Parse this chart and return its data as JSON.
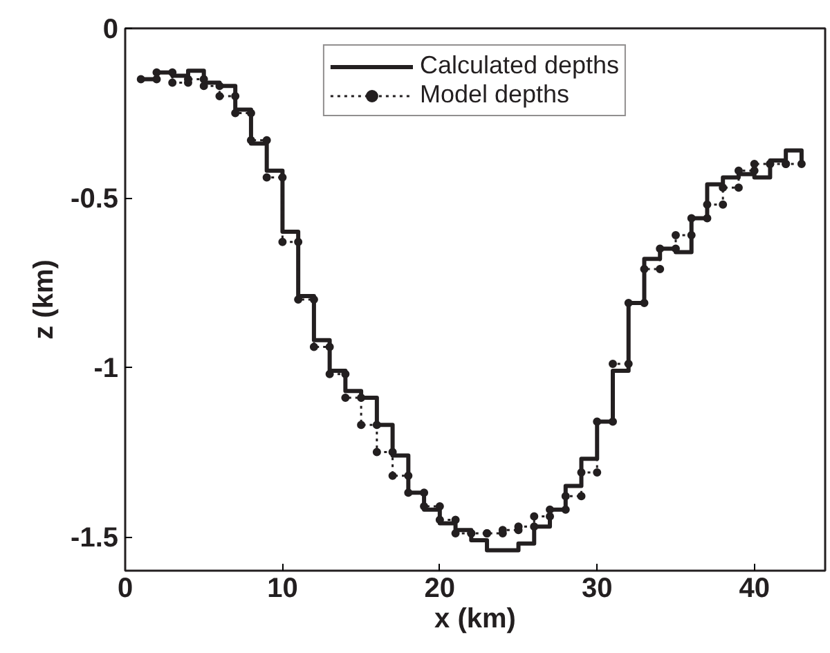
{
  "chart_data": {
    "type": "step",
    "xlabel": "x (km)",
    "ylabel": "z (km)",
    "x": [
      1,
      2,
      3,
      4,
      5,
      6,
      7,
      8,
      9,
      10,
      11,
      12,
      13,
      14,
      15,
      16,
      17,
      18,
      19,
      20,
      21,
      22,
      23,
      24,
      25,
      26,
      27,
      28,
      29,
      30,
      31,
      32,
      33,
      34,
      35,
      36,
      37,
      38,
      39,
      40,
      41,
      42,
      43
    ],
    "series": [
      {
        "name": "Calculated depths",
        "color": "#231f20",
        "line_style": "solid",
        "marker": "none",
        "values": [
          -0.15,
          -0.13,
          -0.14,
          -0.125,
          -0.16,
          -0.17,
          -0.24,
          -0.34,
          -0.42,
          -0.6,
          -0.79,
          -0.92,
          -1.01,
          -1.07,
          -1.09,
          -1.17,
          -1.26,
          -1.37,
          -1.42,
          -1.46,
          -1.48,
          -1.51,
          -1.54,
          -1.54,
          -1.52,
          -1.47,
          -1.42,
          -1.35,
          -1.27,
          -1.16,
          -1.01,
          -0.81,
          -0.68,
          -0.65,
          -0.66,
          -0.56,
          -0.46,
          -0.44,
          -0.43,
          -0.44,
          -0.39,
          -0.36,
          -0.41
        ]
      },
      {
        "name": "Model depths",
        "type": "line",
        "color": "#231f20",
        "line_style": "dotted",
        "marker": "circle",
        "x": [
          1,
          2,
          2,
          3,
          3,
          4,
          4,
          5,
          5,
          6,
          6,
          7,
          7,
          8,
          8,
          9,
          9,
          10,
          10,
          11,
          11,
          12,
          12,
          13,
          13,
          14,
          14,
          15,
          15,
          16,
          16,
          17,
          17,
          18,
          18,
          19,
          19,
          20,
          20,
          21,
          21,
          22,
          22,
          23,
          23,
          24,
          24,
          25,
          25,
          26,
          26,
          27,
          27,
          28,
          28,
          29,
          29,
          30,
          30,
          31,
          31,
          32,
          32,
          33,
          33,
          34,
          34,
          35,
          35,
          36,
          36,
          37,
          37,
          38,
          38,
          39,
          39,
          40,
          40,
          41,
          41,
          42,
          42,
          43
        ],
        "values": [
          -0.15,
          -0.15,
          -0.13,
          -0.13,
          -0.16,
          -0.16,
          -0.15,
          -0.15,
          -0.17,
          -0.17,
          -0.2,
          -0.2,
          -0.25,
          -0.25,
          -0.33,
          -0.33,
          -0.44,
          -0.44,
          -0.63,
          -0.63,
          -0.8,
          -0.8,
          -0.94,
          -0.94,
          -1.02,
          -1.02,
          -1.09,
          -1.09,
          -1.17,
          -1.17,
          -1.25,
          -1.25,
          -1.32,
          -1.32,
          -1.37,
          -1.37,
          -1.41,
          -1.41,
          -1.45,
          -1.45,
          -1.49,
          -1.49,
          -1.49,
          -1.49,
          -1.49,
          -1.49,
          -1.48,
          -1.48,
          -1.47,
          -1.47,
          -1.44,
          -1.44,
          -1.42,
          -1.42,
          -1.38,
          -1.38,
          -1.31,
          -1.31,
          -1.16,
          -1.16,
          -0.99,
          -0.99,
          -0.81,
          -0.81,
          -0.71,
          -0.71,
          -0.65,
          -0.65,
          -0.61,
          -0.61,
          -0.56,
          -0.56,
          -0.52,
          -0.52,
          -0.47,
          -0.47,
          -0.42,
          -0.42,
          -0.4,
          -0.4,
          -0.4,
          -0.4,
          -0.4,
          -0.4
        ]
      }
    ],
    "xlim": [
      0,
      44.5
    ],
    "ylim": [
      -1.6,
      0
    ],
    "xticks": [
      0,
      10,
      20,
      30,
      40
    ],
    "yticks": [
      {
        "value": -1.5,
        "label": "-1.5"
      },
      {
        "value": -1,
        "label": "-1"
      },
      {
        "value": -0.5,
        "label": "-0.5"
      },
      {
        "value": 0,
        "label": "0"
      }
    ],
    "grid": false,
    "legend": "top"
  }
}
